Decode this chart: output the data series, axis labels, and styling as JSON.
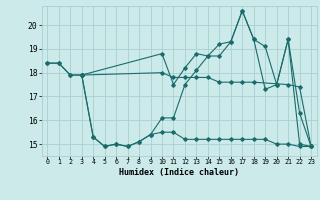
{
  "xlabel": "Humidex (Indice chaleur)",
  "bg_color": "#cceaea",
  "grid_color": "#aacfcf",
  "line_color": "#1a6b6b",
  "ylim": [
    14.5,
    20.8
  ],
  "xlim": [
    -0.5,
    23.5
  ],
  "yticks": [
    15,
    16,
    17,
    18,
    19,
    20
  ],
  "xticks": [
    0,
    1,
    2,
    3,
    4,
    5,
    6,
    7,
    8,
    9,
    10,
    11,
    12,
    13,
    14,
    15,
    16,
    17,
    18,
    19,
    20,
    21,
    22,
    23
  ],
  "line1_x": [
    0,
    1,
    2,
    3,
    10,
    11,
    12,
    13,
    14,
    15,
    16,
    17,
    18,
    19,
    20,
    21,
    22,
    23
  ],
  "line1_y": [
    18.4,
    18.4,
    17.9,
    17.9,
    18.8,
    17.5,
    18.2,
    18.8,
    18.7,
    18.7,
    19.3,
    20.6,
    19.4,
    17.3,
    17.5,
    19.4,
    16.3,
    14.9
  ],
  "line2_x": [
    0,
    1,
    2,
    3,
    10,
    11,
    12,
    13,
    14,
    15,
    16,
    17,
    18,
    21,
    22,
    23
  ],
  "line2_y": [
    18.4,
    18.4,
    17.9,
    17.9,
    18.0,
    17.8,
    17.8,
    17.8,
    17.8,
    17.6,
    17.6,
    17.6,
    17.6,
    17.5,
    17.4,
    14.9
  ],
  "line3_x": [
    3,
    4,
    5,
    6,
    7,
    8,
    9,
    10,
    11,
    12,
    13,
    14,
    15,
    16,
    17,
    18,
    19,
    20,
    21,
    22,
    23
  ],
  "line3_y": [
    17.9,
    15.3,
    14.9,
    15.0,
    14.9,
    15.1,
    15.4,
    16.1,
    16.1,
    17.5,
    18.1,
    18.7,
    19.2,
    19.3,
    20.6,
    19.4,
    19.1,
    17.5,
    19.4,
    15.0,
    14.9
  ],
  "line4_x": [
    3,
    4,
    5,
    6,
    7,
    8,
    9,
    10,
    11,
    12,
    13,
    14,
    15,
    16,
    17,
    18,
    19,
    20,
    21,
    22,
    23
  ],
  "line4_y": [
    17.9,
    15.3,
    14.9,
    15.0,
    14.9,
    15.1,
    15.4,
    15.5,
    15.5,
    15.2,
    15.2,
    15.2,
    15.2,
    15.2,
    15.2,
    15.2,
    15.2,
    15.0,
    15.0,
    14.9,
    14.9
  ]
}
